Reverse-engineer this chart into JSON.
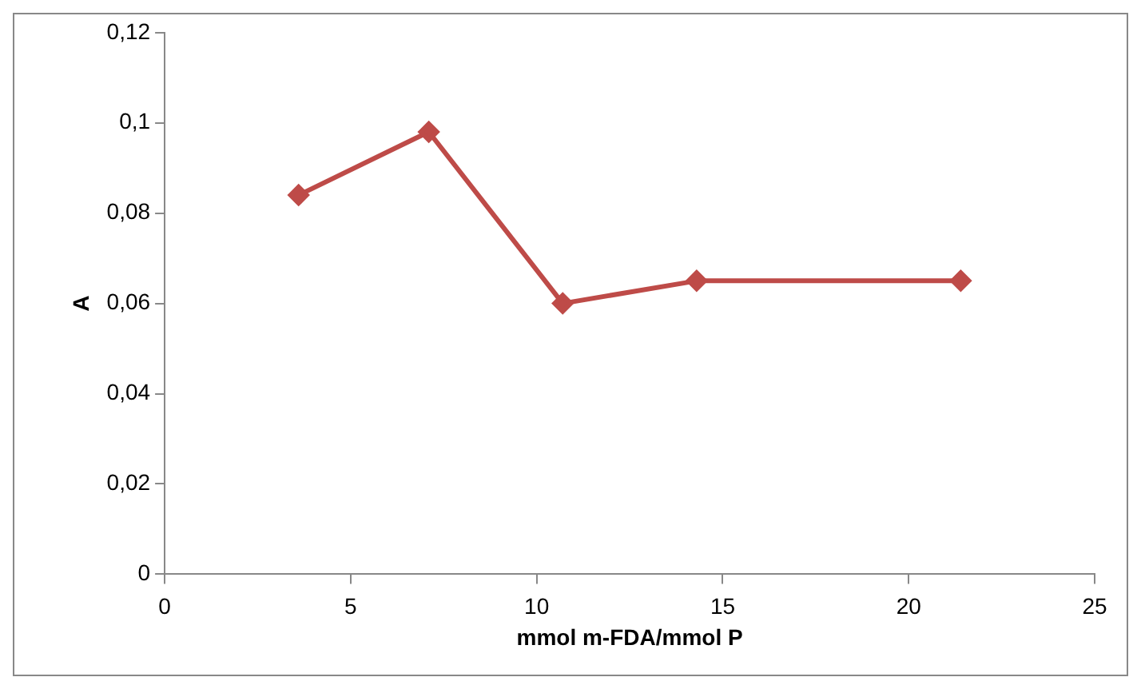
{
  "chart_data": {
    "type": "line",
    "xlabel": "mmol m-FDA/mmol P",
    "ylabel": "A",
    "x": [
      3.6,
      7.1,
      10.7,
      14.3,
      21.4
    ],
    "series": [
      {
        "color": "#be4b48",
        "values": [
          0.084,
          0.098,
          0.06,
          0.065,
          0.065
        ]
      }
    ],
    "xlim": [
      0,
      25
    ],
    "xticks": [
      0,
      5,
      10,
      15,
      20,
      25
    ],
    "ylim": [
      0,
      0.12
    ],
    "yticks": [
      {
        "value": 0,
        "label": "0"
      },
      {
        "value": 0.02,
        "label": "0,02"
      },
      {
        "value": 0.04,
        "label": "0,04"
      },
      {
        "value": 0.06,
        "label": "0,06"
      },
      {
        "value": 0.08,
        "label": "0,08"
      },
      {
        "value": 0.1,
        "label": "0,1"
      },
      {
        "value": 0.12,
        "label": "0,12"
      }
    ],
    "grid": false,
    "legend": false,
    "marker": "diamond",
    "line_style": "solid"
  }
}
